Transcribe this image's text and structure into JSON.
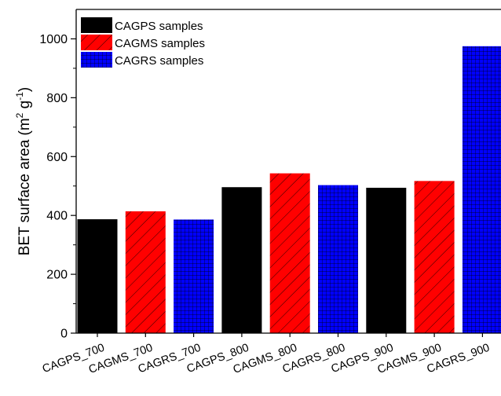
{
  "chart_data": {
    "type": "bar",
    "categories": [
      "CAGPS_700",
      "CAGMS_700",
      "CAGRS_700",
      "CAGPS_800",
      "CAGMS_800",
      "CAGRS_800",
      "CAGPS_900",
      "CAGMS_900",
      "CAGRS_900"
    ],
    "values": [
      387,
      414,
      386,
      496,
      543,
      503,
      494,
      517,
      975
    ],
    "bar_series": [
      "CAGPS samples",
      "CAGMS samples",
      "CAGRS samples",
      "CAGPS samples",
      "CAGMS samples",
      "CAGRS samples",
      "CAGPS samples",
      "CAGMS samples",
      "CAGRS samples"
    ],
    "series": [
      {
        "name": "CAGPS samples",
        "color": "#000000",
        "pattern": "solid"
      },
      {
        "name": "CAGMS samples",
        "color": "#ff0000",
        "pattern": "diagonal-hatch"
      },
      {
        "name": "CAGRS samples",
        "color": "#0000ff",
        "pattern": "grid"
      }
    ],
    "ylabel_main": "BET surface area (m",
    "ylabel_sup1": "2",
    "ylabel_mid": " g",
    "ylabel_sup2": "-1",
    "ylabel_end": ")",
    "ylim": [
      0,
      1100
    ],
    "yticks": [
      "0",
      "200",
      "400",
      "600",
      "800",
      "1000"
    ],
    "legend_position": "top-left",
    "grid": false
  }
}
